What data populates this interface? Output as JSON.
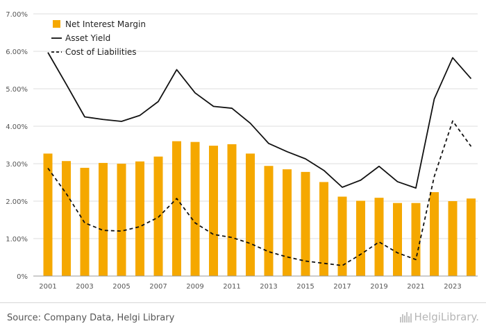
{
  "chart_data": {
    "type": "bar+line",
    "title": "",
    "xlabel": "",
    "ylabel": "",
    "ylim": [
      0,
      7
    ],
    "y_ticks": [
      "0%",
      "1.00%",
      "2.00%",
      "3.00%",
      "4.00%",
      "5.00%",
      "6.00%",
      "7.00%"
    ],
    "x": [
      2001,
      2002,
      2003,
      2004,
      2005,
      2006,
      2007,
      2008,
      2009,
      2010,
      2011,
      2012,
      2013,
      2014,
      2015,
      2016,
      2017,
      2018,
      2019,
      2020,
      2021,
      2022,
      2023,
      2024
    ],
    "x_tick_labels": [
      "2001",
      "2003",
      "2005",
      "2007",
      "2009",
      "2011",
      "2013",
      "2015",
      "2017",
      "2019",
      "2021",
      "2023"
    ],
    "legend_position": "top-left",
    "grid": true,
    "series": [
      {
        "name": "Net Interest Margin",
        "type": "bar",
        "color": "#f5a800",
        "values": [
          3.27,
          3.07,
          2.89,
          3.02,
          3.0,
          3.06,
          3.19,
          3.6,
          3.58,
          3.48,
          3.52,
          3.27,
          2.94,
          2.85,
          2.78,
          2.51,
          2.12,
          2.01,
          2.09,
          1.95,
          1.95,
          2.24,
          2.0,
          2.07
        ]
      },
      {
        "name": "Asset Yield",
        "type": "line",
        "style": "solid",
        "color": "#111111",
        "values": [
          5.97,
          5.12,
          4.25,
          4.18,
          4.13,
          4.29,
          4.66,
          5.51,
          4.89,
          4.53,
          4.48,
          4.08,
          3.54,
          3.32,
          3.13,
          2.82,
          2.37,
          2.56,
          2.93,
          2.52,
          2.35,
          4.73,
          5.83,
          5.27
        ]
      },
      {
        "name": "Cost of Liabilities",
        "type": "line",
        "style": "dashed",
        "color": "#111111",
        "values": [
          2.88,
          2.2,
          1.42,
          1.22,
          1.2,
          1.32,
          1.57,
          2.07,
          1.42,
          1.11,
          1.03,
          0.87,
          0.65,
          0.51,
          0.4,
          0.34,
          0.28,
          0.58,
          0.91,
          0.62,
          0.44,
          2.66,
          4.14,
          3.46
        ]
      }
    ]
  },
  "footer": {
    "source": "Source: Company Data, Helgi Library",
    "logo_text": "HelgiLibrary."
  }
}
